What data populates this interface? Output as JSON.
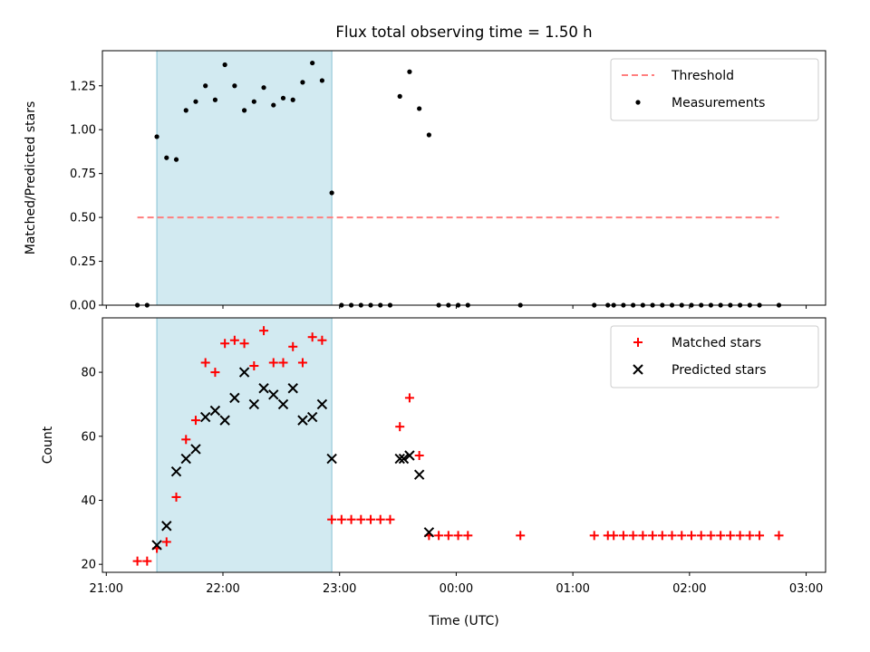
{
  "chart_data": [
    {
      "type": "scatter",
      "title": "Flux total observing time = 1.50 h",
      "xlabel": "",
      "ylabel": "Matched/Predicted stars",
      "x_ticks": [
        "21:00",
        "22:00",
        "23:00",
        "00:00",
        "01:00",
        "02:00",
        "03:00"
      ],
      "ylim": [
        0,
        1.45
      ],
      "y_ticks": [
        "0.00",
        "0.25",
        "0.50",
        "0.75",
        "1.00",
        "1.25"
      ],
      "shaded_span": {
        "start": "21:26",
        "end": "22:56",
        "color": "#add8e6"
      },
      "threshold": {
        "name": "Threshold",
        "value": 0.5,
        "x_start": "21:16",
        "x_end": "02:46",
        "color": "#ff7f7f"
      },
      "series": [
        {
          "name": "Measurements",
          "color": "#000000",
          "points": [
            [
              "21:16",
              0
            ],
            [
              "21:21",
              0
            ],
            [
              "21:26",
              0.96
            ],
            [
              "21:31",
              0.84
            ],
            [
              "21:36",
              0.83
            ],
            [
              "21:41",
              1.11
            ],
            [
              "21:46",
              1.16
            ],
            [
              "21:51",
              1.25
            ],
            [
              "21:56",
              1.17
            ],
            [
              "22:01",
              1.37
            ],
            [
              "22:06",
              1.25
            ],
            [
              "22:11",
              1.11
            ],
            [
              "22:16",
              1.16
            ],
            [
              "22:21",
              1.24
            ],
            [
              "22:26",
              1.14
            ],
            [
              "22:31",
              1.18
            ],
            [
              "22:36",
              1.17
            ],
            [
              "22:41",
              1.27
            ],
            [
              "22:46",
              1.38
            ],
            [
              "22:51",
              1.28
            ],
            [
              "22:56",
              0.64
            ],
            [
              "23:01",
              0
            ],
            [
              "23:06",
              0
            ],
            [
              "23:11",
              0
            ],
            [
              "23:16",
              0
            ],
            [
              "23:21",
              0
            ],
            [
              "23:26",
              0.0
            ],
            [
              "23:31",
              1.19
            ],
            [
              "23:36",
              1.33
            ],
            [
              "23:41",
              1.12
            ],
            [
              "23:46",
              0.97
            ],
            [
              "23:51",
              0
            ],
            [
              "23:56",
              0
            ],
            [
              "00:01",
              0
            ],
            [
              "00:06",
              0
            ],
            [
              "00:33",
              0
            ],
            [
              "01:11",
              0
            ],
            [
              "01:18",
              0
            ],
            [
              "01:21",
              0
            ],
            [
              "01:26",
              0
            ],
            [
              "01:31",
              0
            ],
            [
              "01:36",
              0
            ],
            [
              "01:41",
              0
            ],
            [
              "01:46",
              0
            ],
            [
              "01:51",
              0
            ],
            [
              "01:56",
              0
            ],
            [
              "02:01",
              0
            ],
            [
              "02:06",
              0
            ],
            [
              "02:11",
              0
            ],
            [
              "02:16",
              0
            ],
            [
              "02:21",
              0
            ],
            [
              "02:26",
              0
            ],
            [
              "02:31",
              0
            ],
            [
              "02:36",
              0
            ],
            [
              "02:46",
              0
            ]
          ]
        }
      ],
      "legend": [
        "Threshold",
        "Measurements"
      ],
      "legend_position": "top-right",
      "grid": false
    },
    {
      "type": "scatter",
      "xlabel": "Time (UTC)",
      "ylabel": "Count",
      "x_ticks": [
        "21:00",
        "22:00",
        "23:00",
        "00:00",
        "01:00",
        "02:00",
        "03:00"
      ],
      "ylim": [
        17.5,
        97
      ],
      "y_ticks": [
        "20",
        "40",
        "60",
        "80"
      ],
      "shaded_span": {
        "start": "21:26",
        "end": "22:56",
        "color": "#add8e6"
      },
      "series": [
        {
          "name": "Matched stars",
          "color": "#ff0000",
          "marker": "+",
          "points": [
            [
              "21:16",
              21
            ],
            [
              "21:21",
              21
            ],
            [
              "21:26",
              25
            ],
            [
              "21:31",
              27
            ],
            [
              "21:36",
              41
            ],
            [
              "21:41",
              59
            ],
            [
              "21:46",
              65
            ],
            [
              "21:51",
              83
            ],
            [
              "21:56",
              80
            ],
            [
              "22:01",
              89
            ],
            [
              "22:06",
              90
            ],
            [
              "22:11",
              89
            ],
            [
              "22:16",
              82
            ],
            [
              "22:21",
              93
            ],
            [
              "22:26",
              83
            ],
            [
              "22:31",
              83
            ],
            [
              "22:36",
              88
            ],
            [
              "22:41",
              83
            ],
            [
              "22:46",
              91
            ],
            [
              "22:51",
              90
            ],
            [
              "22:56",
              34
            ],
            [
              "23:01",
              34
            ],
            [
              "23:06",
              34
            ],
            [
              "23:11",
              34
            ],
            [
              "23:16",
              34
            ],
            [
              "23:21",
              34
            ],
            [
              "23:26",
              34
            ],
            [
              "23:31",
              63
            ],
            [
              "23:36",
              72
            ],
            [
              "23:41",
              54
            ],
            [
              "23:46",
              29
            ],
            [
              "23:51",
              29
            ],
            [
              "23:56",
              29
            ],
            [
              "00:01",
              29
            ],
            [
              "00:06",
              29
            ],
            [
              "00:33",
              29
            ],
            [
              "01:11",
              29
            ],
            [
              "01:18",
              29
            ],
            [
              "01:21",
              29
            ],
            [
              "01:26",
              29
            ],
            [
              "01:31",
              29
            ],
            [
              "01:36",
              29
            ],
            [
              "01:41",
              29
            ],
            [
              "01:46",
              29
            ],
            [
              "01:51",
              29
            ],
            [
              "01:56",
              29
            ],
            [
              "02:01",
              29
            ],
            [
              "02:06",
              29
            ],
            [
              "02:11",
              29
            ],
            [
              "02:16",
              29
            ],
            [
              "02:21",
              29
            ],
            [
              "02:26",
              29
            ],
            [
              "02:31",
              29
            ],
            [
              "02:36",
              29
            ],
            [
              "02:46",
              29
            ]
          ]
        },
        {
          "name": "Predicted stars",
          "color": "#000000",
          "marker": "x",
          "points": [
            [
              "21:26",
              26
            ],
            [
              "21:31",
              32
            ],
            [
              "21:36",
              49
            ],
            [
              "21:41",
              53
            ],
            [
              "21:46",
              56
            ],
            [
              "21:51",
              66
            ],
            [
              "21:56",
              68
            ],
            [
              "22:01",
              65
            ],
            [
              "22:06",
              72
            ],
            [
              "22:11",
              80
            ],
            [
              "22:16",
              70
            ],
            [
              "22:21",
              75
            ],
            [
              "22:26",
              73
            ],
            [
              "22:31",
              70
            ],
            [
              "22:36",
              75
            ],
            [
              "22:41",
              65
            ],
            [
              "22:46",
              66
            ],
            [
              "22:51",
              70
            ],
            [
              "22:56",
              53
            ],
            [
              "23:31",
              53
            ],
            [
              "23:33",
              53
            ],
            [
              "23:36",
              54
            ],
            [
              "23:41",
              48
            ],
            [
              "23:46",
              30
            ]
          ]
        }
      ],
      "legend": [
        "Matched stars",
        "Predicted stars"
      ],
      "legend_position": "top-right",
      "grid": false
    }
  ]
}
